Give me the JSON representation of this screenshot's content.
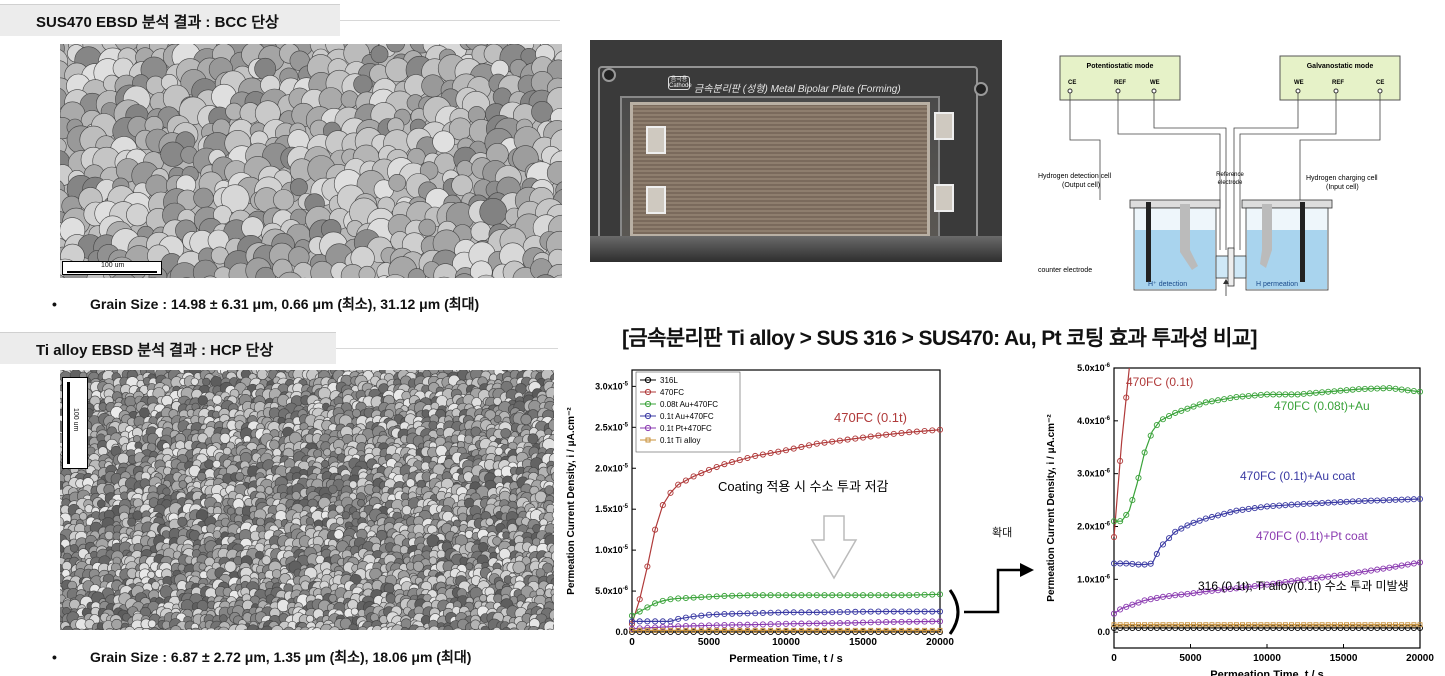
{
  "panels": {
    "sus470_title": "SUS470 EBSD 분석 결과 : BCC 단상",
    "sus470_grain": "Grain Size : 14.98 ± 6.31 μm, 0.66 μm (최소), 31.12 μm (최대)",
    "sus470_scale": "100 um",
    "ti_title": "Ti alloy EBSD 분석 결과 : HCP 단상",
    "ti_grain": "Grain Size : 6.87 ± 2.72 μm, 1.35 μm (최소), 18.06 μm (최대)",
    "ti_scale": "100 um",
    "bullet_mark": "•"
  },
  "photo": {
    "plate_label": "금속분리판 (성형) Metal Bipolar Plate (Forming)",
    "badge": "음극용 Cathode"
  },
  "cell_diagram": {
    "left_box_title": "Potentiostatic mode",
    "left_terminals": [
      "CE",
      "REF",
      "WE"
    ],
    "right_box_title": "Galvanostatic mode",
    "right_terminals": [
      "WE",
      "REF",
      "CE"
    ],
    "left_cell_label_1": "Hydrogen detection cell",
    "left_cell_label_2": "(Output cell)",
    "ref_label_1": "Reference",
    "ref_label_2": "electrode",
    "right_cell_label_1": "Hydrogen charging cell",
    "right_cell_label_2": "(Input cell)",
    "counter_label": "counter electrode",
    "left_bath": "H⁺ detection",
    "right_bath": "H permeation"
  },
  "main_title": "[금속분리판 Ti alloy > SUS 316 > SUS470: Au, Pt 코팅 효과 투과성 비교]",
  "zoom_label": "확대",
  "chart_data": [
    {
      "type": "line",
      "xlabel": "Permeation Time, t / s",
      "ylabel": "Permeation Current Density, i / μA.cm⁻²",
      "xlim": [
        0,
        20000
      ],
      "ylim": [
        0,
        3.2e-05
      ],
      "xticks": [
        "0",
        "5000",
        "10000",
        "15000",
        "20000"
      ],
      "yticks": [
        {
          "m": "0.0",
          "e": ""
        },
        {
          "m": "5.0x10",
          "e": "-6"
        },
        {
          "m": "1.0x10",
          "e": "-5"
        },
        {
          "m": "1.5x10",
          "e": "-5"
        },
        {
          "m": "2.0x10",
          "e": "-5"
        },
        {
          "m": "2.5x10",
          "e": "-5"
        },
        {
          "m": "3.0x10",
          "e": "-5"
        }
      ],
      "ytick_values": [
        0,
        5e-06,
        1e-05,
        1.5e-05,
        2e-05,
        2.5e-05,
        3e-05
      ],
      "annotation": "470FC (0.1t)",
      "note": "Coating 적용 시 수소 투과 저감",
      "legend_position": "top-left",
      "x": [
        0,
        500,
        1000,
        1500,
        2000,
        2500,
        3000,
        4000,
        5000,
        6000,
        8000,
        10000,
        12000,
        14000,
        16000,
        18000,
        20000
      ],
      "series": [
        {
          "name": "316L",
          "color": "#000000",
          "values": [
            0,
            0,
            0,
            0,
            0,
            0,
            0,
            0,
            0,
            0,
            0,
            0,
            0,
            0,
            0,
            0,
            0
          ]
        },
        {
          "name": "470FC",
          "color": "#b03a3a",
          "values": [
            1e-06,
            4e-06,
            8e-06,
            1.25e-05,
            1.55e-05,
            1.7e-05,
            1.8e-05,
            1.9e-05,
            1.98e-05,
            2.05e-05,
            2.15e-05,
            2.22e-05,
            2.3e-05,
            2.35e-05,
            2.4e-05,
            2.44e-05,
            2.47e-05
          ]
        },
        {
          "name": "0.08t Au+470FC",
          "color": "#3aa33a",
          "values": [
            2e-06,
            2.5e-06,
            3e-06,
            3.5e-06,
            3.8e-06,
            4e-06,
            4.1e-06,
            4.2e-06,
            4.3e-06,
            4.4e-06,
            4.5e-06,
            4.5e-06,
            4.5e-06,
            4.5e-06,
            4.5e-06,
            4.5e-06,
            4.6e-06
          ]
        },
        {
          "name": "0.1t Au+470FC",
          "color": "#3a3aa3",
          "values": [
            1.3e-06,
            1.3e-06,
            1.3e-06,
            1.3e-06,
            1.3e-06,
            1.3e-06,
            1.6e-06,
            1.9e-06,
            2.1e-06,
            2.2e-06,
            2.3e-06,
            2.4e-06,
            2.4e-06,
            2.45e-06,
            2.5e-06,
            2.5e-06,
            2.5e-06
          ]
        },
        {
          "name": "0.1t Pt+470FC",
          "color": "#8a3ab0",
          "values": [
            4e-07,
            4.5e-07,
            5e-07,
            5.5e-07,
            6e-07,
            6.5e-07,
            7e-07,
            7.5e-07,
            8e-07,
            8.5e-07,
            9e-07,
            1e-06,
            1.05e-06,
            1.1e-06,
            1.2e-06,
            1.25e-06,
            1.3e-06
          ]
        },
        {
          "name": "0.1t Ti alloy",
          "color": "#c8903a",
          "values": [
            2e-07,
            2e-07,
            2e-07,
            2e-07,
            2e-07,
            2e-07,
            2e-07,
            2e-07,
            2e-07,
            2e-07,
            2e-07,
            2e-07,
            2e-07,
            2e-07,
            2e-07,
            2e-07,
            2e-07
          ]
        }
      ]
    },
    {
      "type": "line",
      "xlabel": "Permeation Time, t / s",
      "ylabel": "Permeation Current Density, i / μA.cm⁻²",
      "xlim": [
        0,
        20000
      ],
      "ylim": [
        -3e-07,
        5e-06
      ],
      "xticks": [
        "0",
        "5000",
        "10000",
        "15000",
        "20000"
      ],
      "yticks": [
        {
          "m": "0.0",
          "e": ""
        },
        {
          "m": "1.0x10",
          "e": "-6"
        },
        {
          "m": "2.0x10",
          "e": "-6"
        },
        {
          "m": "3.0x10",
          "e": "-6"
        },
        {
          "m": "4.0x10",
          "e": "-6"
        },
        {
          "m": "5.0x10",
          "e": "-6"
        }
      ],
      "ytick_values": [
        0,
        1e-06,
        2e-06,
        3e-06,
        4e-06,
        5e-06
      ],
      "labels": [
        "470FC (0.1t)",
        "470FC (0.08t)+Au",
        "470FC (0.1t)+Au coat",
        "470FC (0.1t)+Pt coat",
        "316 (0.1t), Ti alloy(0.1t)  수소 투과 미발생"
      ],
      "x": [
        0,
        500,
        1000,
        1500,
        2000,
        2500,
        3000,
        4000,
        5000,
        6000,
        8000,
        10000,
        12000,
        14000,
        16000,
        18000,
        20000
      ],
      "series": [
        {
          "color": "#b03a3a",
          "values": [
            1.8e-06,
            3.6e-06,
            5e-06,
            null,
            null,
            null,
            null,
            null,
            null,
            null,
            null,
            null,
            null,
            null,
            null,
            null,
            null
          ]
        },
        {
          "color": "#3aa33a",
          "values": [
            2.1e-06,
            2.1e-06,
            2.3e-06,
            2.8e-06,
            3.4e-06,
            3.8e-06,
            4e-06,
            4.15e-06,
            4.25e-06,
            4.35e-06,
            4.45e-06,
            4.5e-06,
            4.5e-06,
            4.55e-06,
            4.6e-06,
            4.62e-06,
            4.55e-06
          ]
        },
        {
          "color": "#3a3aa3",
          "values": [
            1.3e-06,
            1.3e-06,
            1.3e-06,
            1.28e-06,
            1.28e-06,
            1.3e-06,
            1.6e-06,
            1.9e-06,
            2.05e-06,
            2.15e-06,
            2.3e-06,
            2.38e-06,
            2.42e-06,
            2.45e-06,
            2.48e-06,
            2.5e-06,
            2.52e-06
          ]
        },
        {
          "color": "#8a3ab0",
          "values": [
            3.5e-07,
            4.5e-07,
            5e-07,
            5.5e-07,
            6e-07,
            6.3e-07,
            6.6e-07,
            7e-07,
            7.3e-07,
            7.7e-07,
            8.3e-07,
            9e-07,
            9.8e-07,
            1.05e-06,
            1.13e-06,
            1.22e-06,
            1.32e-06
          ]
        },
        {
          "color": "#000000",
          "values": [
            8e-08,
            8e-08,
            8e-08,
            8e-08,
            8e-08,
            8e-08,
            8e-08,
            8e-08,
            8e-08,
            8e-08,
            8e-08,
            8e-08,
            8e-08,
            8e-08,
            8e-08,
            8e-08,
            8e-08
          ]
        },
        {
          "color": "#c8903a",
          "values": [
            1.4e-07,
            1.4e-07,
            1.4e-07,
            1.4e-07,
            1.4e-07,
            1.4e-07,
            1.4e-07,
            1.4e-07,
            1.4e-07,
            1.4e-07,
            1.4e-07,
            1.4e-07,
            1.4e-07,
            1.4e-07,
            1.4e-07,
            1.4e-07,
            1.4e-07
          ]
        }
      ]
    }
  ]
}
